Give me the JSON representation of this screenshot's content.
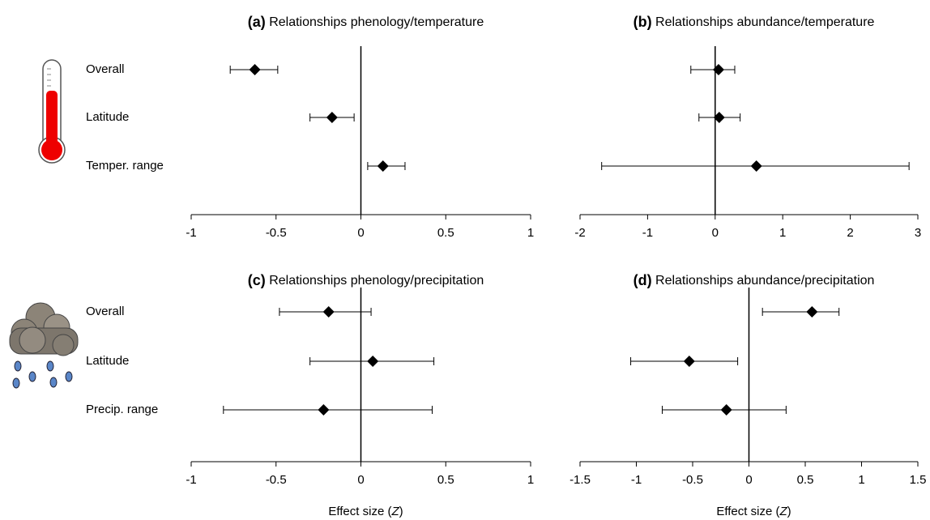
{
  "chart_data": [
    {
      "type": "forest",
      "label": "(a)",
      "title": "Relationships phenology/temperature",
      "categories": [
        "Overall",
        "Latitude",
        "Temper. range"
      ],
      "values": [
        -0.625,
        -0.17,
        0.13
      ],
      "lower": [
        -0.77,
        -0.3,
        0.04
      ],
      "upper": [
        -0.49,
        -0.04,
        0.26
      ],
      "xlim": [
        -1,
        1
      ],
      "xticks": [
        -1,
        -0.5,
        0,
        0.5,
        1
      ]
    },
    {
      "type": "forest",
      "label": "(b)",
      "title": "Relationships abundance/temperature",
      "values": [
        0.05,
        0.06,
        0.61
      ],
      "lower": [
        -0.36,
        -0.24,
        -1.68
      ],
      "upper": [
        0.29,
        0.37,
        2.87
      ],
      "xlim": [
        -2,
        3
      ],
      "xticks": [
        -2,
        -1,
        0,
        1,
        2,
        3
      ]
    },
    {
      "type": "forest",
      "label": "(c)",
      "title": "Relationships phenology/precipitation",
      "categories": [
        "Overall",
        "Latitude",
        "Precip. range"
      ],
      "values": [
        -0.19,
        0.07,
        -0.22
      ],
      "lower": [
        -0.48,
        -0.3,
        -0.81
      ],
      "upper": [
        0.06,
        0.43,
        0.42
      ],
      "xlim": [
        -1,
        1
      ],
      "xticks": [
        -1,
        -0.5,
        0,
        0.5,
        1
      ],
      "xlabel": [
        "Effect size (",
        "Z",
        ")"
      ]
    },
    {
      "type": "forest",
      "label": "(d)",
      "title": "Relationships abundance/precipitation",
      "values": [
        0.56,
        -0.53,
        -0.2
      ],
      "lower": [
        0.12,
        -1.05,
        -0.77
      ],
      "upper": [
        0.8,
        -0.1,
        0.33
      ],
      "xlim": [
        -1.5,
        1.5
      ],
      "xticks": [
        -1.5,
        -1,
        -0.5,
        0,
        0.5,
        1,
        1.5
      ],
      "xlabel": [
        "Effect size (",
        "Z",
        ")"
      ]
    }
  ]
}
